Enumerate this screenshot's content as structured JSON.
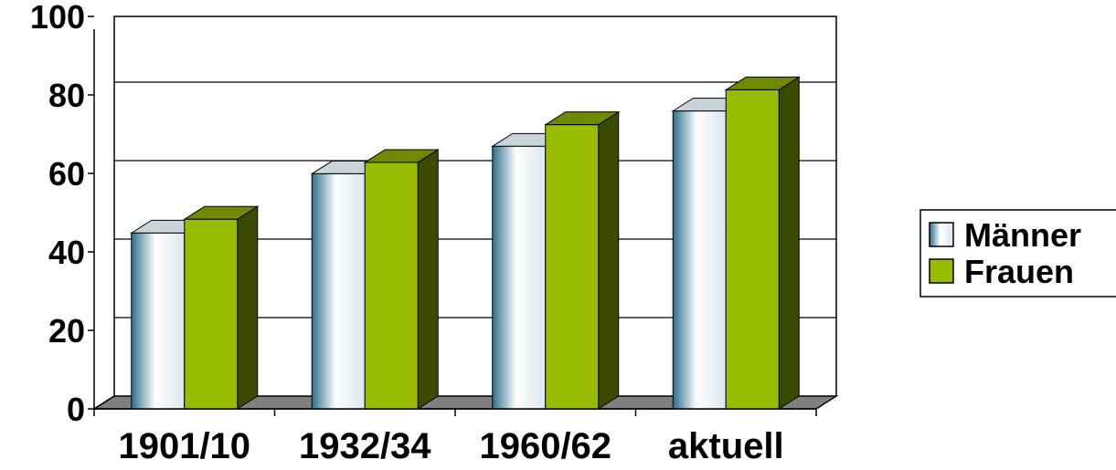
{
  "chart_data": {
    "type": "bar",
    "style": "3d-clustered-column",
    "categories": [
      "1901/10",
      "1932/34",
      "1960/62",
      "aktuell"
    ],
    "series": [
      {
        "name": "Männer",
        "values": [
          44.8,
          59.9,
          66.9,
          75.9
        ],
        "color": "#dce8f0"
      },
      {
        "name": "Frauen",
        "values": [
          48.3,
          62.8,
          72.4,
          81.3
        ],
        "color": "#99bb00"
      }
    ],
    "y_ticks": [
      "0",
      "20",
      "40",
      "60",
      "80",
      "100"
    ],
    "ylim": [
      0,
      100
    ],
    "grid": true,
    "legend_position": "right",
    "title": "",
    "xlabel": "",
    "ylabel": ""
  }
}
